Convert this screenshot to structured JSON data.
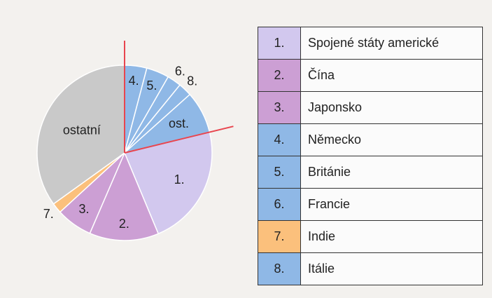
{
  "chart_data": {
    "type": "pie",
    "slices": [
      {
        "label": "4.",
        "value": 4.1,
        "color": "#8fb8e6"
      },
      {
        "label": "5.",
        "value": 4.2,
        "color": "#8fb8e6"
      },
      {
        "label": "6.",
        "value": 2.6,
        "color": "#8fb8e6"
      },
      {
        "label": "8.",
        "value": 2.5,
        "color": "#8fb8e6"
      },
      {
        "label": "ost.",
        "value": 7.8,
        "color": "#8fb8e6"
      },
      {
        "label": "1.",
        "value": 22.5,
        "color": "#d2c8ee"
      },
      {
        "label": "2.",
        "value": 12.8,
        "color": "#cc9fd4"
      },
      {
        "label": "3.",
        "value": 6.7,
        "color": "#cc9fd4"
      },
      {
        "label": "7.",
        "value": 1.9,
        "color": "#fbc07c"
      },
      {
        "label": "ostatní",
        "value": 34.9,
        "color": "#c9c9c9"
      }
    ],
    "legend": [
      {
        "number": "1.",
        "name": "Spojené státy americké",
        "color": "#d2c8ee"
      },
      {
        "number": "2.",
        "name": "Čína",
        "color": "#cc9fd4"
      },
      {
        "number": "3.",
        "name": "Japonsko",
        "color": "#cc9fd4"
      },
      {
        "number": "4.",
        "name": "Německo",
        "color": "#8fb8e6"
      },
      {
        "number": "5.",
        "name": "Británie",
        "color": "#8fb8e6"
      },
      {
        "number": "6.",
        "name": "Francie",
        "color": "#8fb8e6"
      },
      {
        "number": "7.",
        "name": "Indie",
        "color": "#fbc07c"
      },
      {
        "number": "8.",
        "name": "Itálie",
        "color": "#8fb8e6"
      }
    ]
  }
}
